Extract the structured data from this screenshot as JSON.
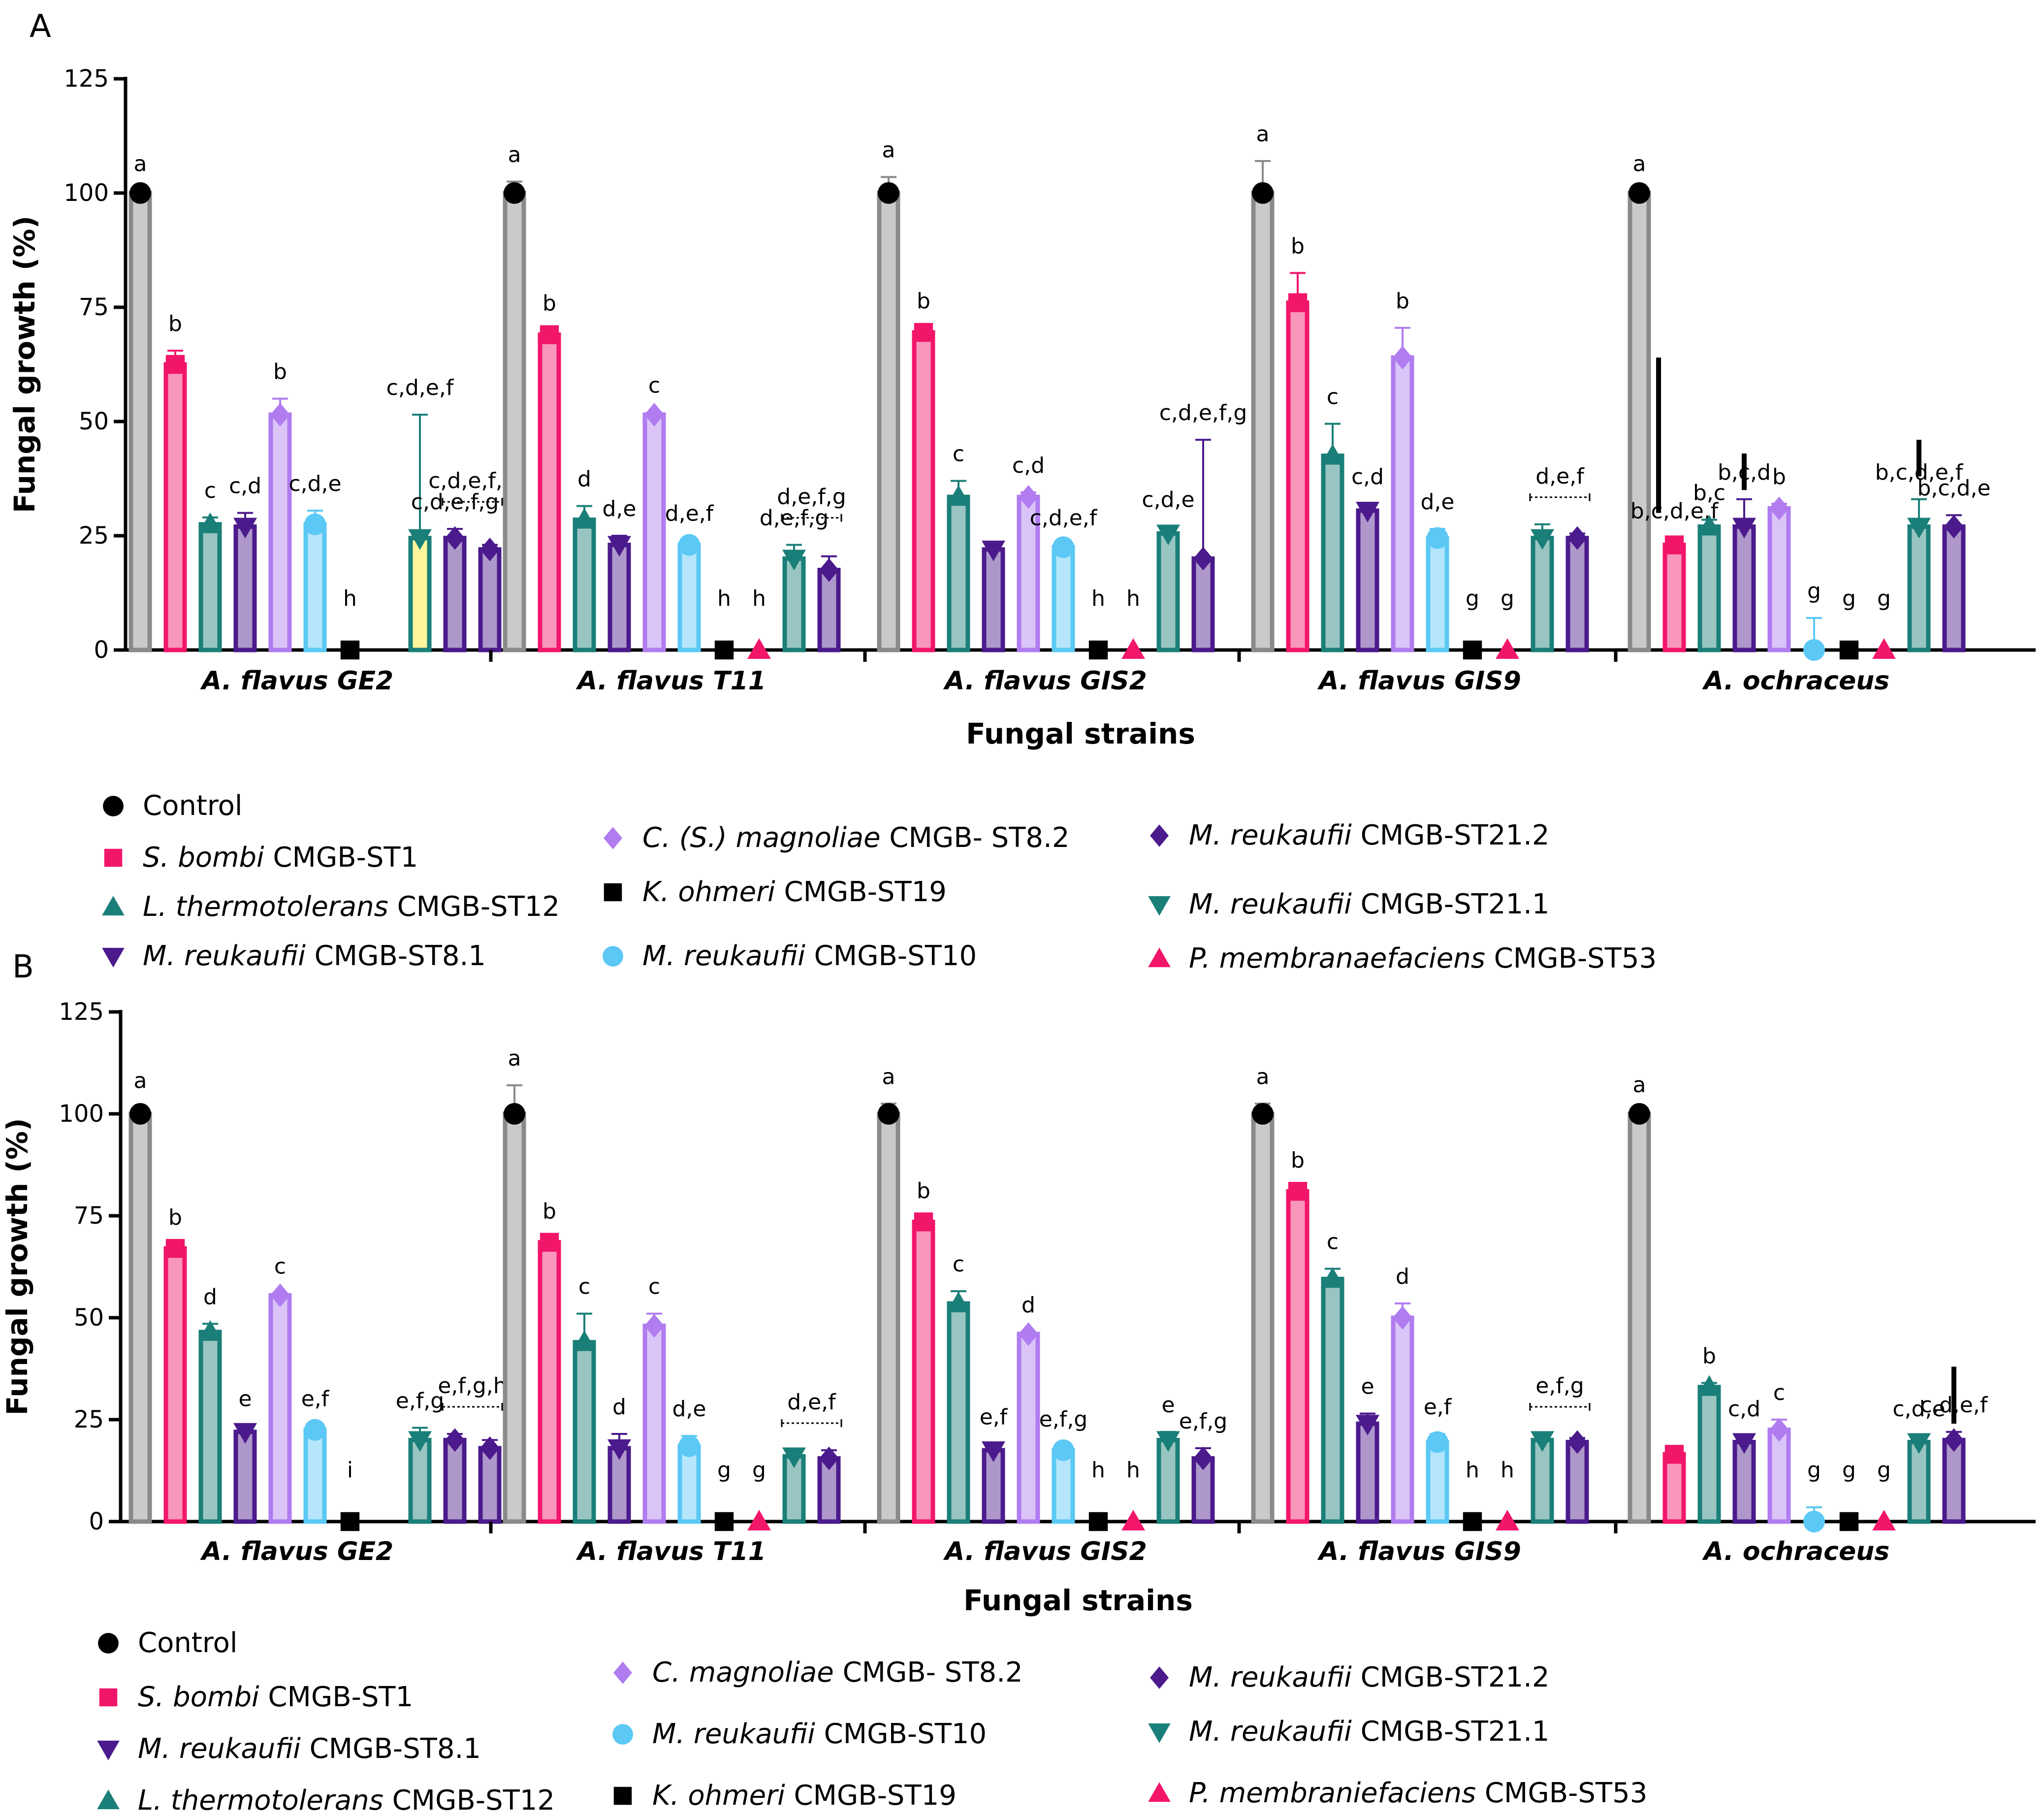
{
  "chart_data": [
    {
      "type": "bar",
      "panel": "A",
      "xlabel": "Fungal strains",
      "ylabel": "Fungal growth  (%)",
      "ylim": [
        0,
        125
      ],
      "yticks": [
        "0",
        "25",
        "50",
        "75",
        "100",
        "125"
      ],
      "groups": [
        {
          "label": "A. flavus GE2",
          "values": [
            100,
            62.5,
            27.5,
            27,
            51.5,
            27.5,
            0,
            null,
            24.5,
            24.5,
            22
          ],
          "errors": [
            0.5,
            3,
            1.5,
            3,
            3.5,
            3,
            0,
            null,
            27,
            2,
            1
          ],
          "letters": [
            "a",
            "b",
            "c",
            "c,d",
            "b",
            "c,d,e",
            "h",
            "",
            "c,d,e,f",
            "c,d,e,f,g",
            ""
          ],
          "bracket": {
            "from": 9,
            "to": 10,
            "label": "c,d,e,f,g"
          }
        },
        {
          "label": "A. flavus T11",
          "values": [
            100,
            69,
            28.5,
            23,
            51.5,
            23,
            0,
            0,
            20,
            17.5,
            null
          ],
          "errors": [
            2.5,
            1,
            3,
            2,
            0.5,
            1,
            0,
            0,
            3,
            3,
            null
          ],
          "letters": [
            "a",
            "b",
            "d",
            "d,e",
            "c",
            "d,e,f",
            "h",
            "h",
            "d,e,f,g",
            "",
            ""
          ],
          "bracket": {
            "from": 8,
            "to": 9,
            "label": "d,e,f,g"
          }
        },
        {
          "label": "A. flavus GIS2",
          "values": [
            100,
            69.5,
            33.5,
            22,
            33.5,
            22.5,
            0,
            0,
            25.5,
            20,
            null
          ],
          "errors": [
            3.5,
            1,
            3.5,
            1.5,
            1,
            0.5,
            0,
            0,
            1.5,
            26,
            null
          ],
          "letters": [
            "a",
            "b",
            "c",
            "",
            "c,d",
            "c,d,e,f",
            "h",
            "h",
            "c,d,e",
            "c,d,e,f,g",
            ""
          ],
          "bracket": null
        },
        {
          "label": "A. flavus GIS9",
          "values": [
            100,
            76,
            42.5,
            30.5,
            64,
            24.5,
            0,
            0,
            24.5,
            24.5,
            null
          ],
          "errors": [
            7,
            6.5,
            7,
            1.5,
            6.5,
            2,
            0,
            0,
            3,
            1,
            null
          ],
          "letters": [
            "a",
            "b",
            "c",
            "c,d",
            "b",
            "d,e",
            "g",
            "g",
            "",
            "",
            ""
          ],
          "bracket": {
            "from": 8,
            "to": 9,
            "label": "d,e,f"
          }
        },
        {
          "label": "A. ochraceus",
          "values": [
            100,
            23,
            27,
            27,
            31,
            0,
            0,
            0,
            27,
            27,
            null
          ],
          "errors": [
            0.5,
            1.5,
            1.5,
            6,
            1,
            7,
            0,
            0,
            6,
            2.5,
            null
          ],
          "letters": [
            "a",
            "b,c,d,e,f",
            "b,c",
            "b,c,d",
            "b",
            "g",
            "g",
            "g",
            "b,c,d,e,f",
            "b,c,d,e",
            ""
          ],
          "bracket": null
        }
      ]
    },
    {
      "type": "bar",
      "panel": "B",
      "xlabel": "Fungal strains",
      "ylabel": "Fungal growth  (%)",
      "ylim": [
        0,
        125
      ],
      "yticks": [
        "0",
        "25",
        "50",
        "75",
        "100",
        "125"
      ],
      "groups": [
        {
          "label": "A. flavus GE2",
          "values": [
            100,
            67,
            46.5,
            22,
            55.5,
            22.5,
            0,
            null,
            20,
            20,
            18
          ],
          "errors": [
            1.5,
            1,
            2,
            1.5,
            0.5,
            1,
            0,
            null,
            3,
            1.5,
            2
          ],
          "letters": [
            "a",
            "b",
            "d",
            "e",
            "c",
            "e,f",
            "i",
            "",
            "e,f,g",
            "",
            ""
          ],
          "bracket": {
            "from": 9,
            "to": 10,
            "label": "e,f,g,h"
          }
        },
        {
          "label": "A. flavus T11",
          "values": [
            100,
            68.5,
            44,
            18,
            48,
            18.5,
            0,
            0,
            16,
            15.5,
            null
          ],
          "errors": [
            7,
            1,
            7,
            3.5,
            3,
            2.5,
            0,
            0,
            1.5,
            2,
            null
          ],
          "letters": [
            "a",
            "b",
            "c",
            "d",
            "c",
            "d,e",
            "g",
            "g",
            "",
            "",
            ""
          ],
          "bracket": {
            "from": 8,
            "to": 9,
            "label": "d,e,f"
          }
        },
        {
          "label": "A. flavus GIS2",
          "values": [
            100,
            73.5,
            53.5,
            17.5,
            46,
            17.5,
            0,
            0,
            20,
            15.5,
            null
          ],
          "errors": [
            2.5,
            1,
            3,
            1.5,
            0.5,
            1,
            0,
            0,
            2,
            2.5,
            null
          ],
          "letters": [
            "a",
            "b",
            "c",
            "e,f",
            "d",
            "e,f,g",
            "h",
            "h",
            "e",
            "e,f,g",
            ""
          ],
          "bracket": null
        },
        {
          "label": "A. flavus GIS9",
          "values": [
            100,
            81,
            59.5,
            24,
            50,
            19.5,
            0,
            0,
            20,
            19.5,
            null
          ],
          "errors": [
            2.5,
            1,
            2.5,
            2.5,
            3.5,
            2,
            0,
            0,
            1.5,
            1,
            null
          ],
          "letters": [
            "a",
            "b",
            "c",
            "e",
            "d",
            "e,f",
            "h",
            "h",
            "",
            "",
            ""
          ],
          "bracket": {
            "from": 8,
            "to": 9,
            "label": "e,f,g"
          }
        },
        {
          "label": "A. ochraceus",
          "values": [
            100,
            16.5,
            33,
            19.5,
            22.5,
            0,
            0,
            0,
            19.5,
            20,
            null
          ],
          "errors": [
            0.5,
            1,
            1,
            1.5,
            2.5,
            3.5,
            0,
            0,
            1.5,
            2,
            null
          ],
          "letters": [
            "a",
            "",
            "b",
            "c,d",
            "c",
            "g",
            "g",
            "g",
            "c,d,e",
            "c,d,e,f",
            ""
          ],
          "bracket": null
        }
      ]
    }
  ],
  "series_A": [
    {
      "name": "Control",
      "color": "#8a8a8a",
      "marker": "circle",
      "markerColor": "#000000"
    },
    {
      "name": "S. bombi CMGB-ST1",
      "color": "#f2166a",
      "marker": "square",
      "markerColor": "#f2166a"
    },
    {
      "name": "L. thermotolerans CMGB-ST12",
      "color": "#1a7f78",
      "marker": "triangle-up",
      "markerColor": "#1a7f78"
    },
    {
      "name": "M. reukaufii CMGB-ST8.1",
      "color": "#4b1a8c",
      "marker": "triangle-down",
      "markerColor": "#4b1a8c"
    },
    {
      "name": "C. (S.) magnoliae CMGB- ST8.2",
      "color": "#b07cf0",
      "marker": "diamond",
      "markerColor": "#b07cf0"
    },
    {
      "name": "M. reukaufii CMGB-ST10",
      "color": "#5bc8f5",
      "marker": "circle",
      "markerColor": "#5bc8f5"
    },
    {
      "name": "K. ohmeri CMGB-ST19",
      "color": "#000000",
      "marker": "square",
      "markerColor": "#000000"
    },
    {
      "name": "P. membranaefaciens CMGB-ST53",
      "color": "#f2166a",
      "marker": "triangle-up",
      "markerColor": "#f2166a"
    },
    {
      "name": "M. reukaufii CMGB-ST21.1",
      "color": "#1a7f78",
      "marker": "triangle-down",
      "markerColor": "#1a7f78"
    },
    {
      "name": "M. reukaufii CMGB-ST21.2",
      "color": "#4b1a8c",
      "marker": "diamond",
      "markerColor": "#4b1a8c"
    },
    {
      "name": "(unlabelled)",
      "color": "#4b1a8c",
      "marker": "diamond",
      "markerColor": "#4b1a8c"
    }
  ],
  "legend_A": [
    {
      "marker": "circle",
      "color": "#000000",
      "italic": "",
      "rest": "Control"
    },
    {
      "marker": "square",
      "color": "#f2166a",
      "italic": "S. bombi",
      "rest": " CMGB-ST1"
    },
    {
      "marker": "triangle-up",
      "color": "#1a7f78",
      "italic": "L. thermotolerans",
      "rest": " CMGB-ST12"
    },
    {
      "marker": "triangle-down",
      "color": "#4b1a8c",
      "italic": "M. reukaufii",
      "rest": " CMGB-ST8.1"
    },
    {
      "marker": "diamond",
      "color": "#b07cf0",
      "italic": "C. (S.) magnoliae",
      "rest": " CMGB- ST8.2"
    },
    {
      "marker": "square",
      "color": "#000000",
      "italic": "K. ohmeri",
      "rest": " CMGB-ST19"
    },
    {
      "marker": "circle",
      "color": "#5bc8f5",
      "italic": "M. reukaufii",
      "rest": " CMGB-ST10"
    },
    {
      "marker": "diamond",
      "color": "#4b1a8c",
      "italic": "M. reukaufii",
      "rest": " CMGB-ST21.2"
    },
    {
      "marker": "triangle-down",
      "color": "#1a7f78",
      "italic": "M. reukaufii",
      "rest": " CMGB-ST21.1"
    },
    {
      "marker": "triangle-up",
      "color": "#f2166a",
      "italic": "P. membranaefaciens",
      "rest": " CMGB-ST53"
    }
  ],
  "legend_B": [
    {
      "marker": "circle",
      "color": "#000000",
      "italic": "",
      "rest": "Control"
    },
    {
      "marker": "square",
      "color": "#f2166a",
      "italic": "S. bombi",
      "rest": " CMGB-ST1"
    },
    {
      "marker": "triangle-down",
      "color": "#4b1a8c",
      "italic": "M. reukaufii",
      "rest": " CMGB-ST8.1"
    },
    {
      "marker": "triangle-up",
      "color": "#1a7f78",
      "italic": "L. thermotolerans",
      "rest": " CMGB-ST12"
    },
    {
      "marker": "diamond",
      "color": "#b07cf0",
      "italic": "C. magnoliae",
      "rest": " CMGB- ST8.2"
    },
    {
      "marker": "circle",
      "color": "#5bc8f5",
      "italic": "M. reukaufii",
      "rest": " CMGB-ST10"
    },
    {
      "marker": "square",
      "color": "#000000",
      "italic": "K. ohmeri",
      "rest": " CMGB-ST19"
    },
    {
      "marker": "diamond",
      "color": "#4b1a8c",
      "italic": "M. reukaufii",
      "rest": " CMGB-ST21.2"
    },
    {
      "marker": "triangle-down",
      "color": "#1a7f78",
      "italic": "M. reukaufii",
      "rest": " CMGB-ST21.1"
    },
    {
      "marker": "triangle-up",
      "color": "#f2166a",
      "italic": "P. membraniefaciens",
      "rest": " CMGB-ST53"
    }
  ],
  "panel_labels": {
    "a": "A",
    "b": "B"
  }
}
